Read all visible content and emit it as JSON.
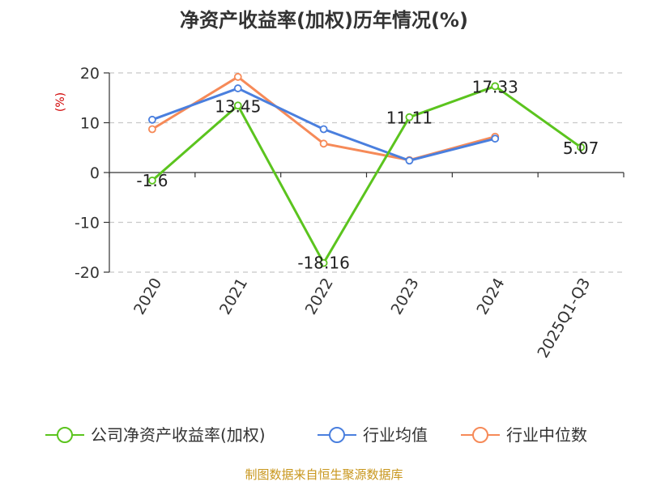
{
  "chart_data": {
    "type": "line",
    "title": "净资产收益率(加权)历年情况(%)",
    "ylabel": "(%)",
    "categories": [
      "2020",
      "2021",
      "2022",
      "2023",
      "2024",
      "2025Q1-Q3"
    ],
    "ylim": [
      -20,
      20
    ],
    "yticks": [
      20,
      10,
      0,
      -10,
      -20
    ],
    "grid": true,
    "legend_position": "bottom",
    "series": [
      {
        "name": "公司净资产收益率(加权)",
        "color": "#5bc41e",
        "values": [
          -1.6,
          13.45,
          -18.16,
          11.11,
          17.33,
          5.07
        ],
        "labels": [
          "-1.6",
          "13.45",
          "-18.16",
          "11.11",
          "17.33",
          "5.07"
        ]
      },
      {
        "name": "行业均值",
        "color": "#4a7fde",
        "values": [
          10.6,
          16.9,
          8.7,
          2.4,
          6.8,
          null
        ]
      },
      {
        "name": "行业中位数",
        "color": "#f68a58",
        "values": [
          8.7,
          19.2,
          5.8,
          2.5,
          7.2,
          null
        ]
      }
    ]
  },
  "source": "制图数据来自恒生聚源数据库"
}
